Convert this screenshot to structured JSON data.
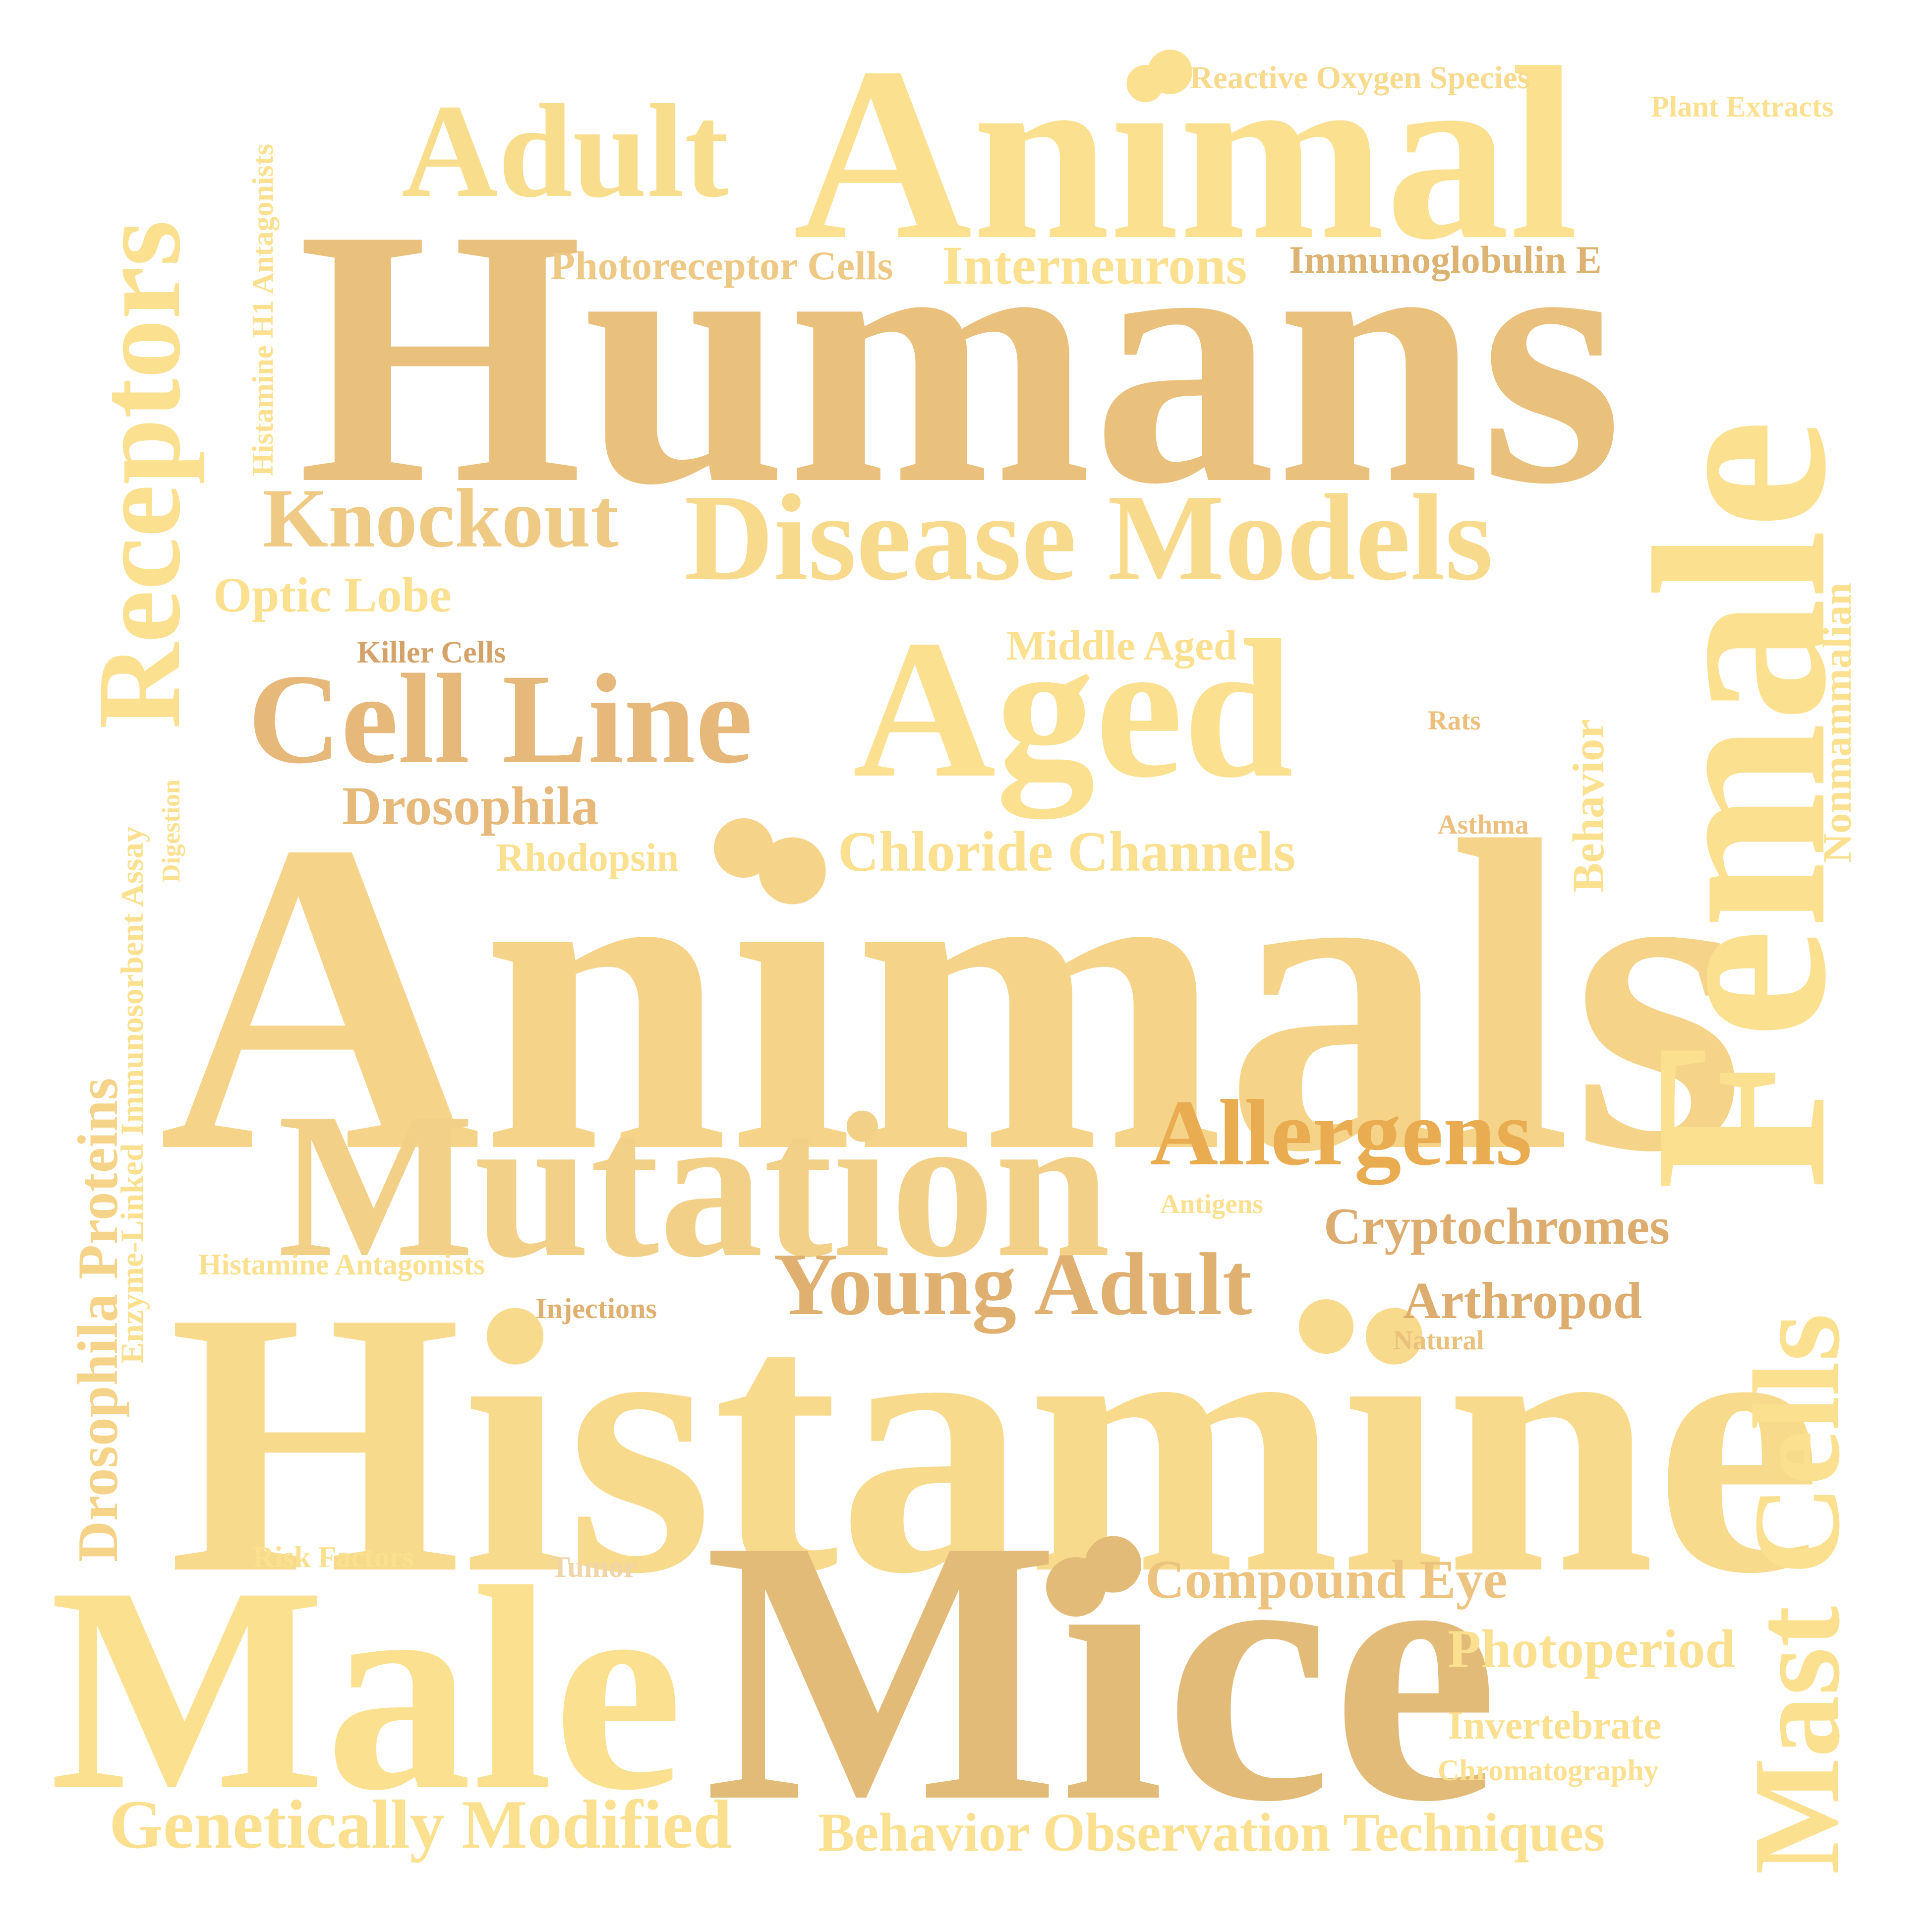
{
  "palette": {
    "light": "#fae08f",
    "mid": "#f5d48a",
    "tan": "#e9c07c",
    "dark_tan": "#e0b070",
    "orange": "#e9ac50"
  },
  "words": {
    "animals": "Animals",
    "histamine": "Histamine",
    "humans": "Humans",
    "mice": "Mice",
    "male": "Male",
    "female": "Female",
    "animal": "Animal",
    "mutation": "Mutation",
    "aged": "Aged",
    "cell_line": "Cell Line",
    "disease_models": "Disease Models",
    "receptors": "Receptors",
    "mast_cells": "Mast Cells",
    "adult": "Adult",
    "allergens": "Allergens",
    "young_adult": "Young Adult",
    "knockout": "Knockout",
    "genetically_modified": "Genetically Modified",
    "behavior_observation_techniques": "Behavior Observation Techniques",
    "chloride_channels": "Chloride Channels",
    "interneurons": "Interneurons",
    "compound_eye": "Compound Eye",
    "cryptochromes": "Cryptochromes",
    "arthropod": "Arthropod",
    "drosophila": "Drosophila",
    "drosophila_proteins": "Drosophila Proteins",
    "photoperiod": "Photoperiod",
    "optic_lobe": "Optic Lobe",
    "photoreceptor_cells": "Photoreceptor Cells",
    "immunoglobulin_e": "Immunoglobulin E",
    "nonmammalian": "Nonmammalian",
    "behavior": "Behavior",
    "middle_aged": "Middle Aged",
    "rhodopsin": "Rhodopsin",
    "invertebrate": "Invertebrate",
    "reactive_oxygen_species": "Reactive Oxygen Species",
    "plant_extracts": "Plant Extracts",
    "histamine_h1_antagonists": "Histamine H1 Antagonists",
    "enzyme_linked_immunosorbent_assay": "Enzyme-Linked Immunosorbent Assay",
    "chromatography": "Chromatography",
    "killer_cells": "Killer Cells",
    "histamine_antagonists": "Histamine Antagonists",
    "risk_factors": "Risk Factors",
    "injections": "Injections",
    "tumor": "Tumor",
    "antigens": "Antigens",
    "natural": "Natural",
    "rats": "Rats",
    "asthma": "Asthma",
    "digestion": "Digestion"
  }
}
